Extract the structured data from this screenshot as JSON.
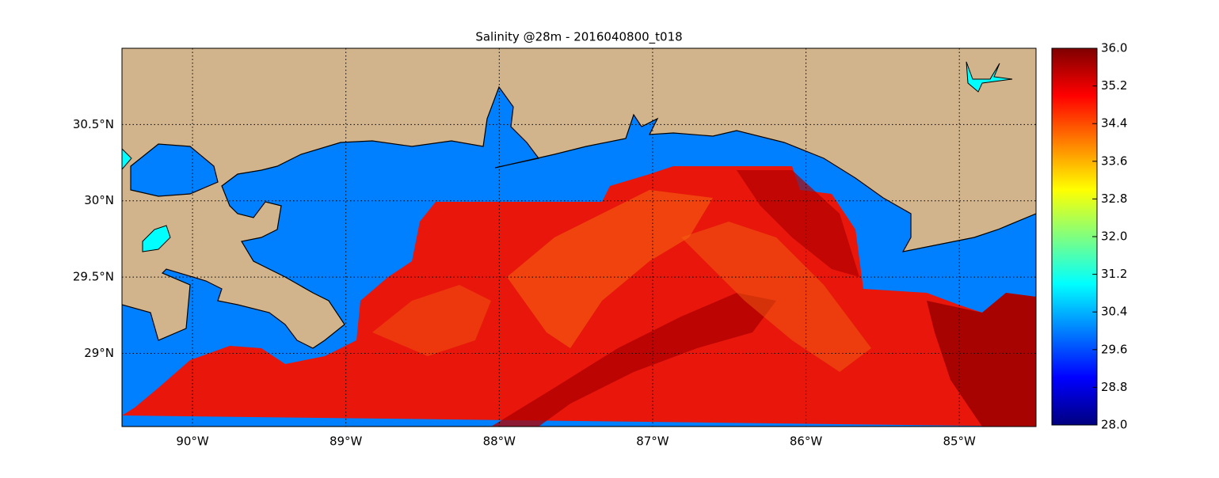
{
  "chart_data": {
    "type": "map",
    "title": "Salinity @28m - 2016040800_t018",
    "xlim": [
      -90.46,
      -84.5
    ],
    "xticks": [
      {
        "value": -90,
        "label": "90°W"
      },
      {
        "value": -89,
        "label": "89°W"
      },
      {
        "value": -88,
        "label": "88°W"
      },
      {
        "value": -87,
        "label": "87°W"
      },
      {
        "value": -86,
        "label": "86°W"
      },
      {
        "value": -85,
        "label": "85°W"
      }
    ],
    "ylim": [
      28.52,
      31.0
    ],
    "yticks": [
      {
        "value": 29,
        "label": "29°N"
      },
      {
        "value": 29.5,
        "label": "29.5°N"
      },
      {
        "value": 30,
        "label": "30°N"
      },
      {
        "value": 30.5,
        "label": "30.5°N"
      }
    ],
    "grid": true,
    "colorbar": {
      "lim": [
        28,
        36
      ],
      "ticks": [
        {
          "value": 28,
          "label": "28.0"
        },
        28.8,
        29.6,
        30.4,
        31.2,
        {
          "value": 32,
          "label": "32.0"
        },
        32.8,
        33.6,
        34.4,
        35.2,
        {
          "value": 36,
          "label": "36.0"
        }
      ]
    }
  }
}
